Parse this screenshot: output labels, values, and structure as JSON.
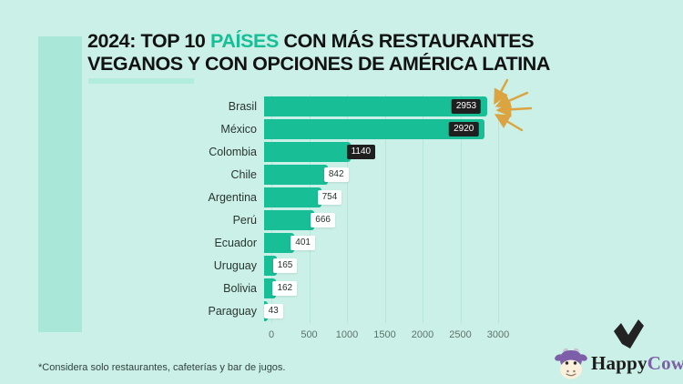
{
  "title": {
    "prefix": "2024: TOP 10 ",
    "highlight": "PAÍSES",
    "suffix": " CON MÁS RESTAURANTES",
    "line2": "VEGANOS Y CON OPCIONES DE AMÉRICA LATINA"
  },
  "footnote": "*Considera solo restaurantes, cafeterías y bar de jugos.",
  "brand": {
    "happy": "Happy",
    "cow": "Cow"
  },
  "colors": {
    "background": "#cbf0e7",
    "accent_rect": "#a9e8d8",
    "bar": "#17be96",
    "highlight_text": "#17be96",
    "badge_dark": "#1f1f1f",
    "badge_light": "#ffffff",
    "gridline": "#b7e6d9",
    "starburst": "#dca440",
    "logo_purple": "#7d5fa9",
    "text_dark": "#121212"
  },
  "chart_data": {
    "type": "bar",
    "orientation": "horizontal",
    "title": "2024: TOP 10 PAÍSES CON MÁS RESTAURANTES VEGANOS Y CON OPCIONES DE AMÉRICA LATINA",
    "categories": [
      "Brasil",
      "México",
      "Colombia",
      "Chile",
      "Argentina",
      "Perú",
      "Ecuador",
      "Uruguay",
      "Bolivia",
      "Paraguay"
    ],
    "values": [
      2953,
      2920,
      1140,
      842,
      754,
      666,
      401,
      165,
      162,
      43
    ],
    "badge_styles": [
      "dark-inside",
      "dark-inside",
      "dark-outside",
      "light",
      "light",
      "light",
      "light",
      "light",
      "light",
      "light"
    ],
    "x_ticks": [
      0,
      500,
      1000,
      1500,
      2000,
      2500,
      3000
    ],
    "xlim": [
      0,
      3000
    ],
    "grid": true,
    "legend": false,
    "annotation": "hand-drawn gold starburst arrows pointing at the Brasil bar value"
  }
}
